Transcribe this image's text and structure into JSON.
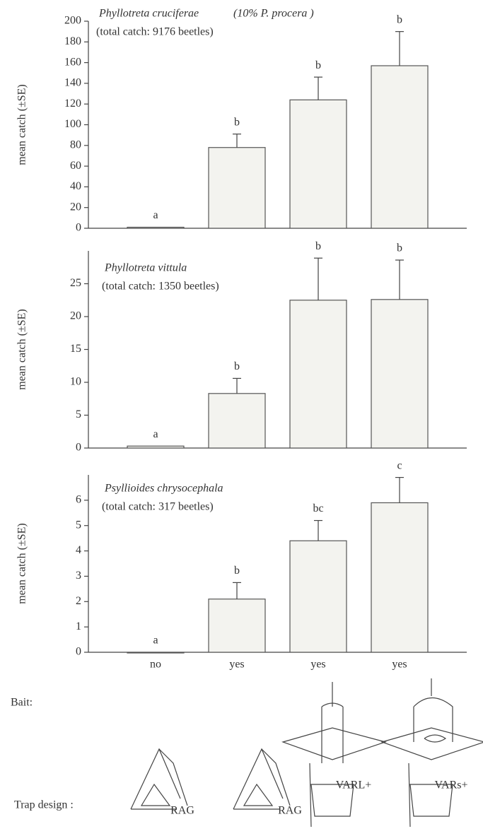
{
  "chart_data": [
    {
      "type": "bar",
      "title": "Phyllotreta cruciferae",
      "note": "(10% P. procera )",
      "subtitle": "(total catch: 9176 beetles)",
      "y_label": "mean catch (±SE)",
      "categories": [
        null,
        null,
        null,
        null
      ],
      "values": [
        1,
        78,
        124,
        157
      ],
      "errors": [
        0,
        13,
        22,
        33
      ],
      "letters": [
        "a",
        "b",
        "b",
        "b"
      ],
      "ylim": [
        0,
        200
      ],
      "yticks": [
        0,
        20,
        40,
        60,
        80,
        100,
        120,
        140,
        160,
        180,
        200
      ],
      "grid": false,
      "color": "#f3f3ef"
    },
    {
      "type": "bar",
      "title": "Phyllotreta vittula",
      "subtitle": "(total catch: 1350 beetles)",
      "y_label": "mean catch (±SE)",
      "categories": [
        null,
        null,
        null,
        null
      ],
      "values": [
        0.3,
        8.3,
        22.5,
        22.6
      ],
      "errors": [
        0,
        2.3,
        6.4,
        6.0
      ],
      "letters": [
        "a",
        "b",
        "b",
        "b"
      ],
      "ylim": [
        0,
        30
      ],
      "yticks": [
        0,
        5,
        10,
        15,
        20,
        25
      ],
      "grid": false,
      "color": "#f3f3ef"
    },
    {
      "type": "bar",
      "title": "Psyllioides chrysocephala",
      "subtitle": "(total catch: 317 beetles)",
      "y_label": "mean catch (±SE)",
      "x_label": "Bait:",
      "categories": [
        "no",
        "yes",
        "yes",
        "yes"
      ],
      "values": [
        0,
        2.1,
        4.4,
        5.9
      ],
      "errors": [
        0,
        0.65,
        0.8,
        1.0
      ],
      "letters": [
        "a",
        "b",
        "bc",
        "c"
      ],
      "ylim": [
        0,
        7
      ],
      "yticks": [
        0,
        1,
        2,
        3,
        4,
        5,
        6
      ],
      "grid": false,
      "color": "#f3f3ef"
    }
  ],
  "trap_design": {
    "label": "Trap design :",
    "traps": [
      "RAG",
      "RAG",
      "VARL+",
      "VARs+"
    ]
  }
}
